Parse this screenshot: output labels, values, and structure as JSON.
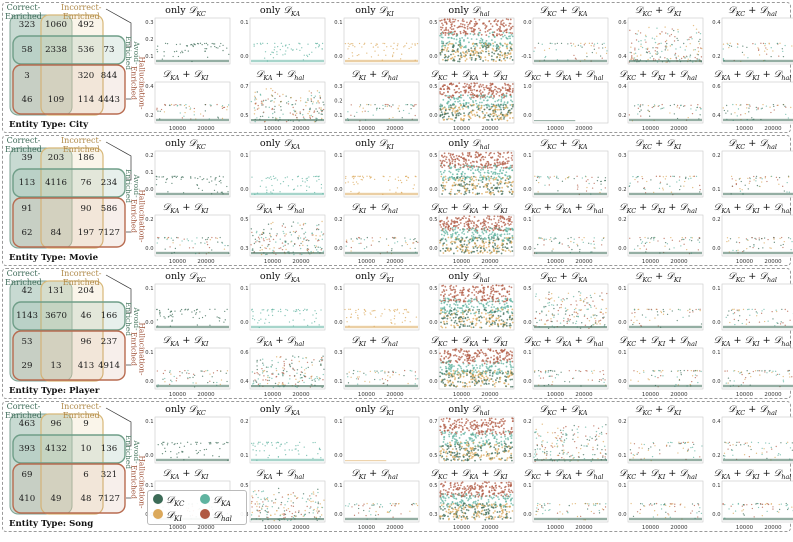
{
  "colors": {
    "kc": "#3c6b57",
    "ka": "#5fb3a0",
    "ki": "#dba85a",
    "hal": "#b05a43",
    "panel_border": "#9a9a9a",
    "venn_ce_fill": "#c8dad2",
    "venn_ie_stroke": "#d8b878",
    "venn_av_stroke": "#6f9e88",
    "venn_he_stroke": "#b86b50"
  },
  "venn_labels": {
    "correct": "Correct-\nEnriched",
    "incorrect": "Incorrect-\nEnriched",
    "avoid": "Avoid-\nEnriched",
    "halluc": "Hallucination-\nEnriched"
  },
  "legend": [
    {
      "key": "kc",
      "label": "D",
      "sub": "KC"
    },
    {
      "key": "ka",
      "label": "D",
      "sub": "KA"
    },
    {
      "key": "ki",
      "label": "D",
      "sub": "KI"
    },
    {
      "key": "hal",
      "label": "D",
      "sub": "hal"
    }
  ],
  "chart_data": [
    {
      "type": "scatter",
      "entity_type_label": "Entity Type: City",
      "venn_counts": [
        "323",
        "1060",
        "492",
        "58",
        "2338",
        "536",
        "73",
        "3",
        "320",
        "844",
        "46",
        "109",
        "114",
        "4443"
      ],
      "subplots": [
        {
          "title": "only D",
          "sub": "KC",
          "yticks": [
            "0.3",
            "0.2",
            "0.1"
          ],
          "series": "kc",
          "density": "sparse"
        },
        {
          "title": "only D",
          "sub": "KA",
          "yticks": [
            "0.1",
            "0.0"
          ],
          "series": "ka",
          "density": "sparse"
        },
        {
          "title": "only D",
          "sub": "KI",
          "yticks": [
            "0.1",
            "0.0"
          ],
          "series": "ki",
          "density": "sparse"
        },
        {
          "title": "only D",
          "sub": "hal",
          "yticks": [
            "0.5",
            "0.0"
          ],
          "series": "hal",
          "density": "dense"
        },
        {
          "title": "D",
          "sub": "KC + D KA",
          "yticks": [
            "0.0",
            "-0.1"
          ],
          "series": "mixed",
          "density": "sparse"
        },
        {
          "title": "D",
          "sub": "KC + D KI",
          "yticks": [
            "0.6",
            "0.4"
          ],
          "series": "mixed",
          "density": "medium"
        },
        {
          "title": "D",
          "sub": "KC + D hal",
          "yticks": [
            "0.4",
            "0.2"
          ],
          "series": "mixed",
          "density": "sparse"
        },
        {
          "title": "D",
          "sub": "KA + D KI",
          "yticks": [
            "0.4",
            "0.2"
          ],
          "series": "mixed",
          "density": "sparse"
        },
        {
          "title": "D",
          "sub": "KA + D hal",
          "yticks": [
            "0.7",
            "0.5"
          ],
          "series": "mixed",
          "density": "medium"
        },
        {
          "title": "D",
          "sub": "KI + D hal",
          "yticks": [
            "0.3",
            "0.2",
            "0.1"
          ],
          "series": "mixed",
          "density": "sparse"
        },
        {
          "title": "D",
          "sub": "KC + D KA + D KI",
          "yticks": [
            "0.5",
            "0.0"
          ],
          "series": "mixed",
          "density": "dense"
        },
        {
          "title": "D",
          "sub": "KC + D KA + D hal",
          "yticks": [
            "1.0",
            "0.0"
          ],
          "series": "mixed",
          "density": "empty"
        },
        {
          "title": "D",
          "sub": "KC + D KI + D hal",
          "yticks": [
            "0.4",
            "0.2"
          ],
          "series": "mixed",
          "density": "sparse"
        },
        {
          "title": "D",
          "sub": "KA + D KI + D hal",
          "yticks": [
            "0.6",
            "0.4"
          ],
          "series": "mixed",
          "density": "sparse"
        }
      ]
    },
    {
      "type": "scatter",
      "entity_type_label": "Entity Type: Movie",
      "venn_counts": [
        "39",
        "203",
        "186",
        "113",
        "4116",
        "76",
        "234",
        "91",
        "90",
        "586",
        "62",
        "84",
        "197",
        "7127"
      ],
      "subplots": [
        {
          "title": "only D",
          "sub": "KC",
          "yticks": [
            "0.2",
            "0.1",
            "0.0"
          ],
          "series": "kc",
          "density": "sparse"
        },
        {
          "title": "only D",
          "sub": "KA",
          "yticks": [
            "0.1",
            "0.0"
          ],
          "series": "ka",
          "density": "sparse"
        },
        {
          "title": "only D",
          "sub": "KI",
          "yticks": [
            "0.1",
            "0.0"
          ],
          "series": "ki",
          "density": "sparse"
        },
        {
          "title": "only D",
          "sub": "hal",
          "yticks": [
            "0.5",
            "0.0"
          ],
          "series": "hal",
          "density": "dense"
        },
        {
          "title": "D",
          "sub": "KC + D KA",
          "yticks": [
            "0.1",
            "0.0"
          ],
          "series": "mixed",
          "density": "sparse"
        },
        {
          "title": "D",
          "sub": "KC + D KI",
          "yticks": [
            "0.3",
            "0.2"
          ],
          "series": "mixed",
          "density": "sparse"
        },
        {
          "title": "D",
          "sub": "KC + D hal",
          "yticks": [
            "0.2",
            "0.1"
          ],
          "series": "mixed",
          "density": "sparse"
        },
        {
          "title": "D",
          "sub": "KA + D KI",
          "yticks": [
            "0.2",
            "0.0"
          ],
          "series": "mixed",
          "density": "sparse"
        },
        {
          "title": "D",
          "sub": "KA + D hal",
          "yticks": [
            "0.5",
            "0.3"
          ],
          "series": "mixed",
          "density": "medium"
        },
        {
          "title": "D",
          "sub": "KI + D hal",
          "yticks": [
            "0.2",
            "0.0"
          ],
          "series": "mixed",
          "density": "sparse"
        },
        {
          "title": "D",
          "sub": "KC + D KA + D KI",
          "yticks": [
            "0.5",
            "0.0"
          ],
          "series": "mixed",
          "density": "dense"
        },
        {
          "title": "D",
          "sub": "KC + D KA + D hal",
          "yticks": [
            "0.1",
            "0.0"
          ],
          "series": "mixed",
          "density": "sparse"
        },
        {
          "title": "D",
          "sub": "KC + D KI + D hal",
          "yticks": [
            "0.2",
            "0.0"
          ],
          "series": "mixed",
          "density": "sparse"
        },
        {
          "title": "D",
          "sub": "KA + D KI + D hal",
          "yticks": [
            "0.2",
            "0.0"
          ],
          "series": "mixed",
          "density": "sparse"
        }
      ]
    },
    {
      "type": "scatter",
      "entity_type_label": "Entity Type: Player",
      "venn_counts": [
        "42",
        "131",
        "204",
        "1143",
        "3670",
        "46",
        "166",
        "53",
        "96",
        "237",
        "29",
        "13",
        "413",
        "4914"
      ],
      "subplots": [
        {
          "title": "only D",
          "sub": "KC",
          "yticks": [
            "0.1",
            "0.0"
          ],
          "series": "kc",
          "density": "sparse"
        },
        {
          "title": "only D",
          "sub": "KA",
          "yticks": [
            "0.1",
            "0.0"
          ],
          "series": "ka",
          "density": "sparse"
        },
        {
          "title": "only D",
          "sub": "KI",
          "yticks": [
            "0.1",
            "0.0"
          ],
          "series": "ki",
          "density": "sparse"
        },
        {
          "title": "only D",
          "sub": "hal",
          "yticks": [
            "0.5",
            "0.0"
          ],
          "series": "hal",
          "density": "dense"
        },
        {
          "title": "D",
          "sub": "KC + D KA",
          "yticks": [
            "0.5",
            "0.0"
          ],
          "series": "mixed",
          "density": "medium"
        },
        {
          "title": "D",
          "sub": "KC + D KI",
          "yticks": [
            "0.1",
            "0.0"
          ],
          "series": "mixed",
          "density": "sparse"
        },
        {
          "title": "D",
          "sub": "KC + D hal",
          "yticks": [
            "0.1",
            "0.0"
          ],
          "series": "mixed",
          "density": "sparse"
        },
        {
          "title": "D",
          "sub": "KA + D KI",
          "yticks": [
            "0.1",
            "0.0"
          ],
          "series": "mixed",
          "density": "sparse"
        },
        {
          "title": "D",
          "sub": "KA + D hal",
          "yticks": [
            "0.6",
            "0.4"
          ],
          "series": "mixed",
          "density": "medium"
        },
        {
          "title": "D",
          "sub": "KI + D hal",
          "yticks": [
            "0.3",
            "0.1"
          ],
          "series": "mixed",
          "density": "sparse"
        },
        {
          "title": "D",
          "sub": "KC + D KA + D KI",
          "yticks": [
            "0.5",
            "0.0"
          ],
          "series": "mixed",
          "density": "dense"
        },
        {
          "title": "D",
          "sub": "KC + D KA + D hal",
          "yticks": [
            "0.1",
            "0.0"
          ],
          "series": "mixed",
          "density": "sparse"
        },
        {
          "title": "D",
          "sub": "KC + D KI + D hal",
          "yticks": [
            "0.1",
            "0.0"
          ],
          "series": "mixed",
          "density": "sparse"
        },
        {
          "title": "D",
          "sub": "KA + D KI + D hal",
          "yticks": [
            "0.1",
            "0.0"
          ],
          "series": "mixed",
          "density": "sparse"
        }
      ]
    },
    {
      "type": "scatter",
      "entity_type_label": "Entity Type: Song",
      "venn_counts": [
        "463",
        "96",
        "9",
        "393",
        "4132",
        "10",
        "136",
        "69",
        "6",
        "321",
        "410",
        "49",
        "48",
        "7127"
      ],
      "subplots": [
        {
          "title": "only D",
          "sub": "KC",
          "yticks": [
            "0.1",
            "0.0"
          ],
          "series": "kc",
          "density": "sparse"
        },
        {
          "title": "only D",
          "sub": "KA",
          "yticks": [
            "0.2",
            "0.1"
          ],
          "series": "ka",
          "density": "sparse"
        },
        {
          "title": "only D",
          "sub": "KI",
          "yticks": [
            "0.1",
            "0.0"
          ],
          "series": "ki",
          "density": "empty"
        },
        {
          "title": "only D",
          "sub": "hal",
          "yticks": [
            "0.7",
            "0.5"
          ],
          "series": "hal",
          "density": "dense"
        },
        {
          "title": "D",
          "sub": "KC + D KA",
          "yticks": [
            "0.2",
            "0.3"
          ],
          "series": "mixed",
          "density": "medium"
        },
        {
          "title": "D",
          "sub": "KC + D KI",
          "yticks": [
            "0.2",
            "0.1"
          ],
          "series": "mixed",
          "density": "sparse"
        },
        {
          "title": "D",
          "sub": "KC + D hal",
          "yticks": [
            "0.4",
            "0.2"
          ],
          "series": "mixed",
          "density": "sparse"
        },
        {
          "title": "D",
          "sub": "KA + D KI",
          "yticks": [
            "0.1",
            "0.0"
          ],
          "series": "mixed",
          "density": "sparse"
        },
        {
          "title": "D",
          "sub": "KA + D hal",
          "yticks": [
            "0.5",
            "0.3"
          ],
          "series": "mixed",
          "density": "medium"
        },
        {
          "title": "D",
          "sub": "KI + D hal",
          "yticks": [
            "0.1",
            "0.0"
          ],
          "series": "mixed",
          "density": "sparse"
        },
        {
          "title": "D",
          "sub": "KC + D KA + D KI",
          "yticks": [
            "0.5",
            "0.3"
          ],
          "series": "mixed",
          "density": "dense"
        },
        {
          "title": "D",
          "sub": "KC + D KA + D hal",
          "yticks": [
            "0.1",
            "0.0"
          ],
          "series": "mixed",
          "density": "sparse"
        },
        {
          "title": "D",
          "sub": "KC + D KI + D hal",
          "yticks": [
            "0.1",
            "0.0"
          ],
          "series": "mixed",
          "density": "sparse"
        },
        {
          "title": "D",
          "sub": "KA + D KI + D hal",
          "yticks": [
            "0.1",
            "0.0"
          ],
          "series": "mixed",
          "density": "sparse"
        }
      ],
      "xticks": [
        "10000",
        "20000"
      ]
    }
  ],
  "xticks": [
    "10000",
    "20000"
  ]
}
